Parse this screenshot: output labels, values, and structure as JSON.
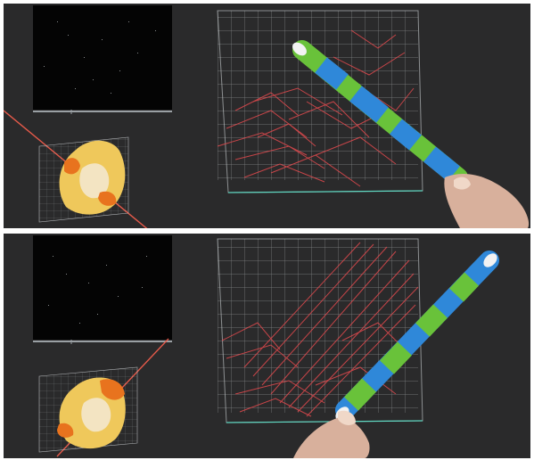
{
  "figure": {
    "panels": [
      {
        "id": "top",
        "state": "before-slice"
      },
      {
        "id": "bottom",
        "state": "after-slice"
      }
    ]
  },
  "colors": {
    "background": "#2a2a2b",
    "grid": "#cfd3d6",
    "fibers": "#d8484c",
    "stick_green": "#69c23a",
    "stick_blue": "#2f88d9",
    "model_yellow": "#efc85b",
    "model_orange": "#e8731e",
    "laser_ray": "#e65a4a",
    "hand_skin": "#d8b09c"
  },
  "icons": {
    "tracked_stick": "stick-controller-icon",
    "hand": "hand-icon"
  }
}
